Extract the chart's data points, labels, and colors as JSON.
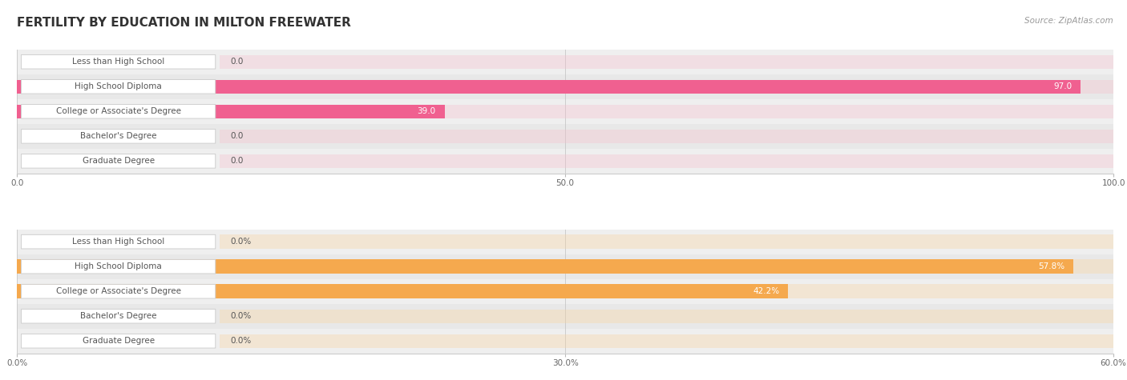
{
  "title": "FERTILITY BY EDUCATION IN MILTON FREEWATER",
  "source": "Source: ZipAtlas.com",
  "top_chart": {
    "categories": [
      "Less than High School",
      "High School Diploma",
      "College or Associate's Degree",
      "Bachelor's Degree",
      "Graduate Degree"
    ],
    "values": [
      0.0,
      97.0,
      39.0,
      0.0,
      0.0
    ],
    "max_value": 100.0,
    "tick_values": [
      0.0,
      50.0,
      100.0
    ],
    "bar_color": "#F06090",
    "bar_color_light": "#F7C0CE",
    "label_color": "#555555",
    "row_bg_colors": [
      "#efefef",
      "#e8e8e8"
    ]
  },
  "bottom_chart": {
    "categories": [
      "Less than High School",
      "High School Diploma",
      "College or Associate's Degree",
      "Bachelor's Degree",
      "Graduate Degree"
    ],
    "values": [
      0.0,
      57.8,
      42.2,
      0.0,
      0.0
    ],
    "max_value": 60.0,
    "tick_values": [
      0.0,
      30.0,
      60.0
    ],
    "bar_color": "#F5A94E",
    "bar_color_light": "#FAD4A0",
    "label_color": "#555555",
    "row_bg_colors": [
      "#efefef",
      "#e8e8e8"
    ]
  },
  "fig_bg": "#ffffff",
  "title_fontsize": 11,
  "label_fontsize": 7.5,
  "value_fontsize": 7.5,
  "tick_fontsize": 7.5
}
